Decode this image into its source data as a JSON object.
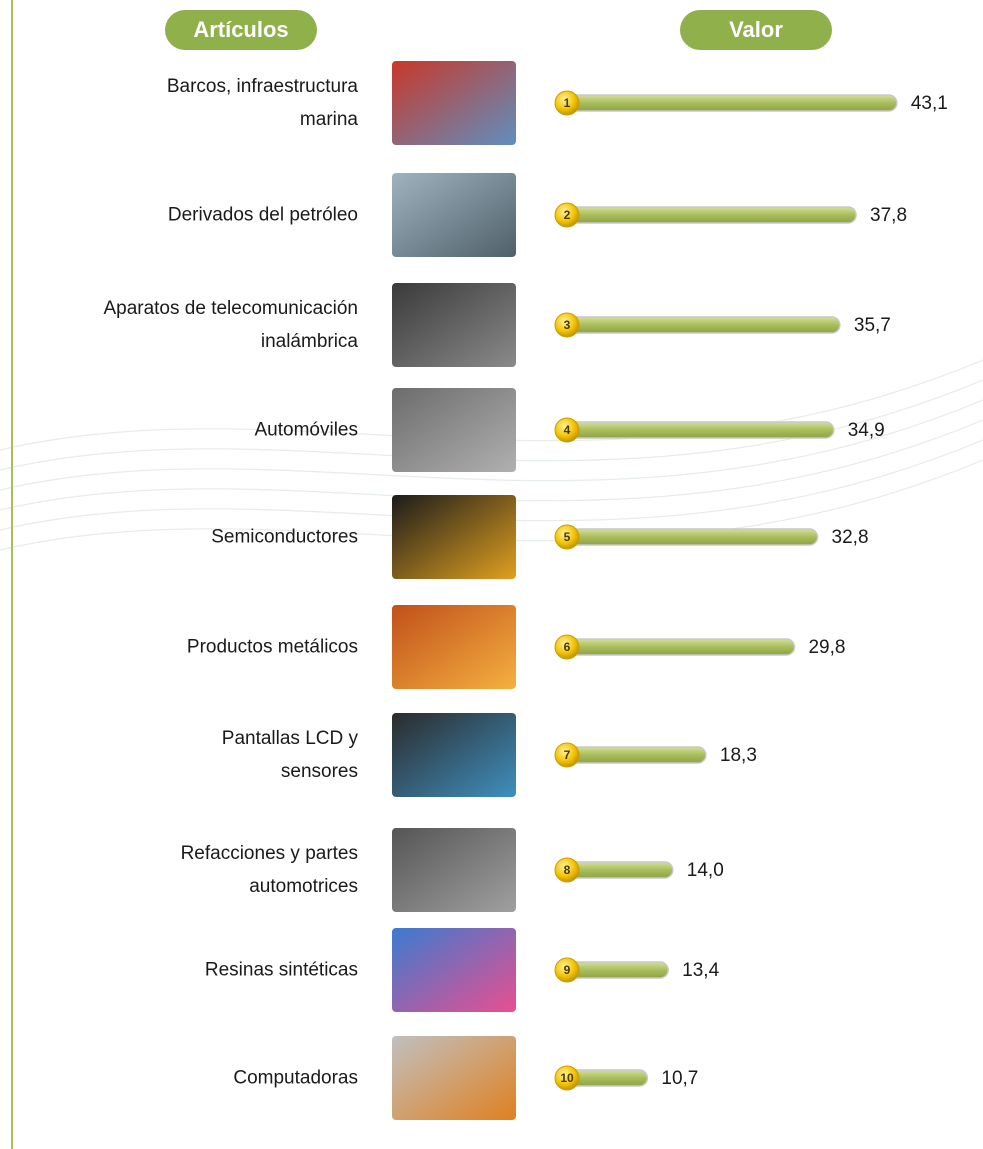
{
  "chart_data": {
    "type": "bar",
    "orientation": "horizontal",
    "category_header": "Artículos",
    "value_header": "Valor",
    "categories": [
      "Barcos, infraestructura\nmarina",
      "Derivados del petróleo",
      "Aparatos de telecomunicación\ninalámbrica",
      "Automóviles",
      "Semiconductores",
      "Productos metálicos",
      "Pantallas LCD y\nsensores",
      "Refacciones y partes\nautomotrices",
      "Resinas sintéticas",
      "Computadoras"
    ],
    "rank_labels": [
      1,
      2,
      3,
      4,
      5,
      6,
      7,
      8,
      9,
      10
    ],
    "values": [
      43.1,
      37.8,
      35.7,
      34.9,
      32.8,
      29.8,
      18.3,
      14.0,
      13.4,
      10.7
    ],
    "value_labels": [
      "43,1",
      "37,8",
      "35,7",
      "34,9",
      "32,8",
      "29,8",
      "18,3",
      "14,0",
      "13,4",
      "10,7"
    ],
    "color": "#a9bd5a"
  }
}
